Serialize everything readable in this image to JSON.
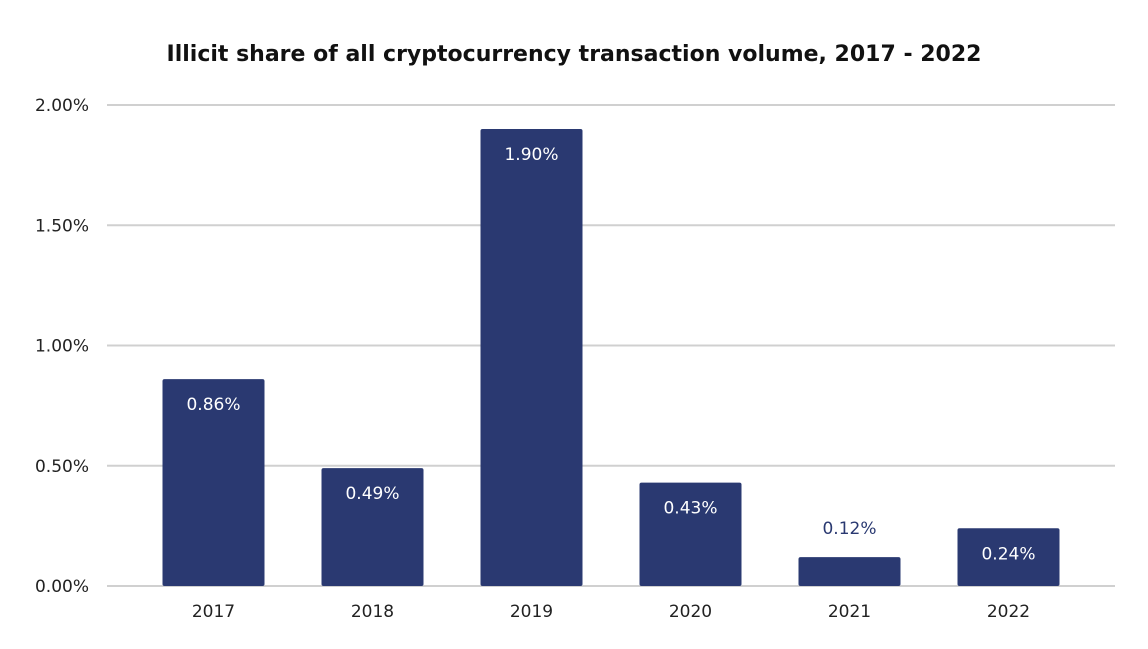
{
  "chart_data": {
    "type": "bar",
    "title": "Illicit share of all cryptocurrency transaction volume, 2017 - 2022",
    "categories": [
      "2017",
      "2018",
      "2019",
      "2020",
      "2021",
      "2022"
    ],
    "values": [
      0.86,
      0.49,
      1.9,
      0.43,
      0.12,
      0.24
    ],
    "value_labels": [
      "0.86%",
      "0.49%",
      "1.90%",
      "0.43%",
      "0.12%",
      "0.24%"
    ],
    "y_ticks": [
      0,
      0.5,
      1.0,
      1.5,
      2.0
    ],
    "y_tick_labels": [
      "0.00%",
      "0.50%",
      "1.00%",
      "1.50%",
      "2.00%"
    ],
    "ylim": [
      0,
      2.0
    ],
    "xlabel": "",
    "ylabel": "",
    "grid": true,
    "legend": "none",
    "bar_color": "#2a3971",
    "grid_color": "#d0d0d0"
  }
}
